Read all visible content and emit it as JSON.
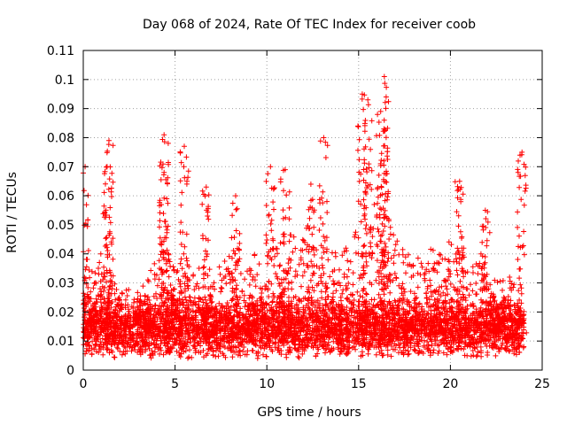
{
  "chart_data": {
    "type": "scatter",
    "title": "Day 068 of 2024, Rate Of TEC Index for receiver coob",
    "xlabel": "GPS time / hours",
    "ylabel": "ROTI / TECUs",
    "xlim": [
      0,
      25
    ],
    "ylim": [
      0,
      0.11
    ],
    "xticks": [
      0,
      5,
      10,
      15,
      20,
      25
    ],
    "yticks": [
      0,
      0.01,
      0.02,
      0.03,
      0.04,
      0.05,
      0.06,
      0.07,
      0.08,
      0.09,
      0.1,
      0.11
    ],
    "xtick_labels": [
      "0",
      "5",
      "10",
      "15",
      "20",
      "25"
    ],
    "ytick_labels": [
      "0",
      "0.01",
      "0.02",
      "0.03",
      "0.04",
      "0.05",
      "0.06",
      "0.07",
      "0.08",
      "0.09",
      "0.1",
      "0.11"
    ],
    "grid": true,
    "marker": "+",
    "color": "#ff0000",
    "x_range_observed": [
      0,
      24
    ],
    "peaks": [
      {
        "x": 0.1,
        "y": 0.07
      },
      {
        "x": 1.4,
        "y": 0.079
      },
      {
        "x": 1.3,
        "y": 0.07
      },
      {
        "x": 4.4,
        "y": 0.081
      },
      {
        "x": 4.4,
        "y": 0.068
      },
      {
        "x": 5.5,
        "y": 0.077
      },
      {
        "x": 6.7,
        "y": 0.063
      },
      {
        "x": 8.3,
        "y": 0.06
      },
      {
        "x": 10.2,
        "y": 0.07
      },
      {
        "x": 11.0,
        "y": 0.069
      },
      {
        "x": 12.4,
        "y": 0.064
      },
      {
        "x": 13.1,
        "y": 0.08
      },
      {
        "x": 15.2,
        "y": 0.095
      },
      {
        "x": 15.5,
        "y": 0.093
      },
      {
        "x": 16.4,
        "y": 0.101
      },
      {
        "x": 16.2,
        "y": 0.089
      },
      {
        "x": 16.5,
        "y": 0.094
      },
      {
        "x": 20.5,
        "y": 0.065
      },
      {
        "x": 21.9,
        "y": 0.055
      },
      {
        "x": 23.9,
        "y": 0.075
      }
    ]
  }
}
